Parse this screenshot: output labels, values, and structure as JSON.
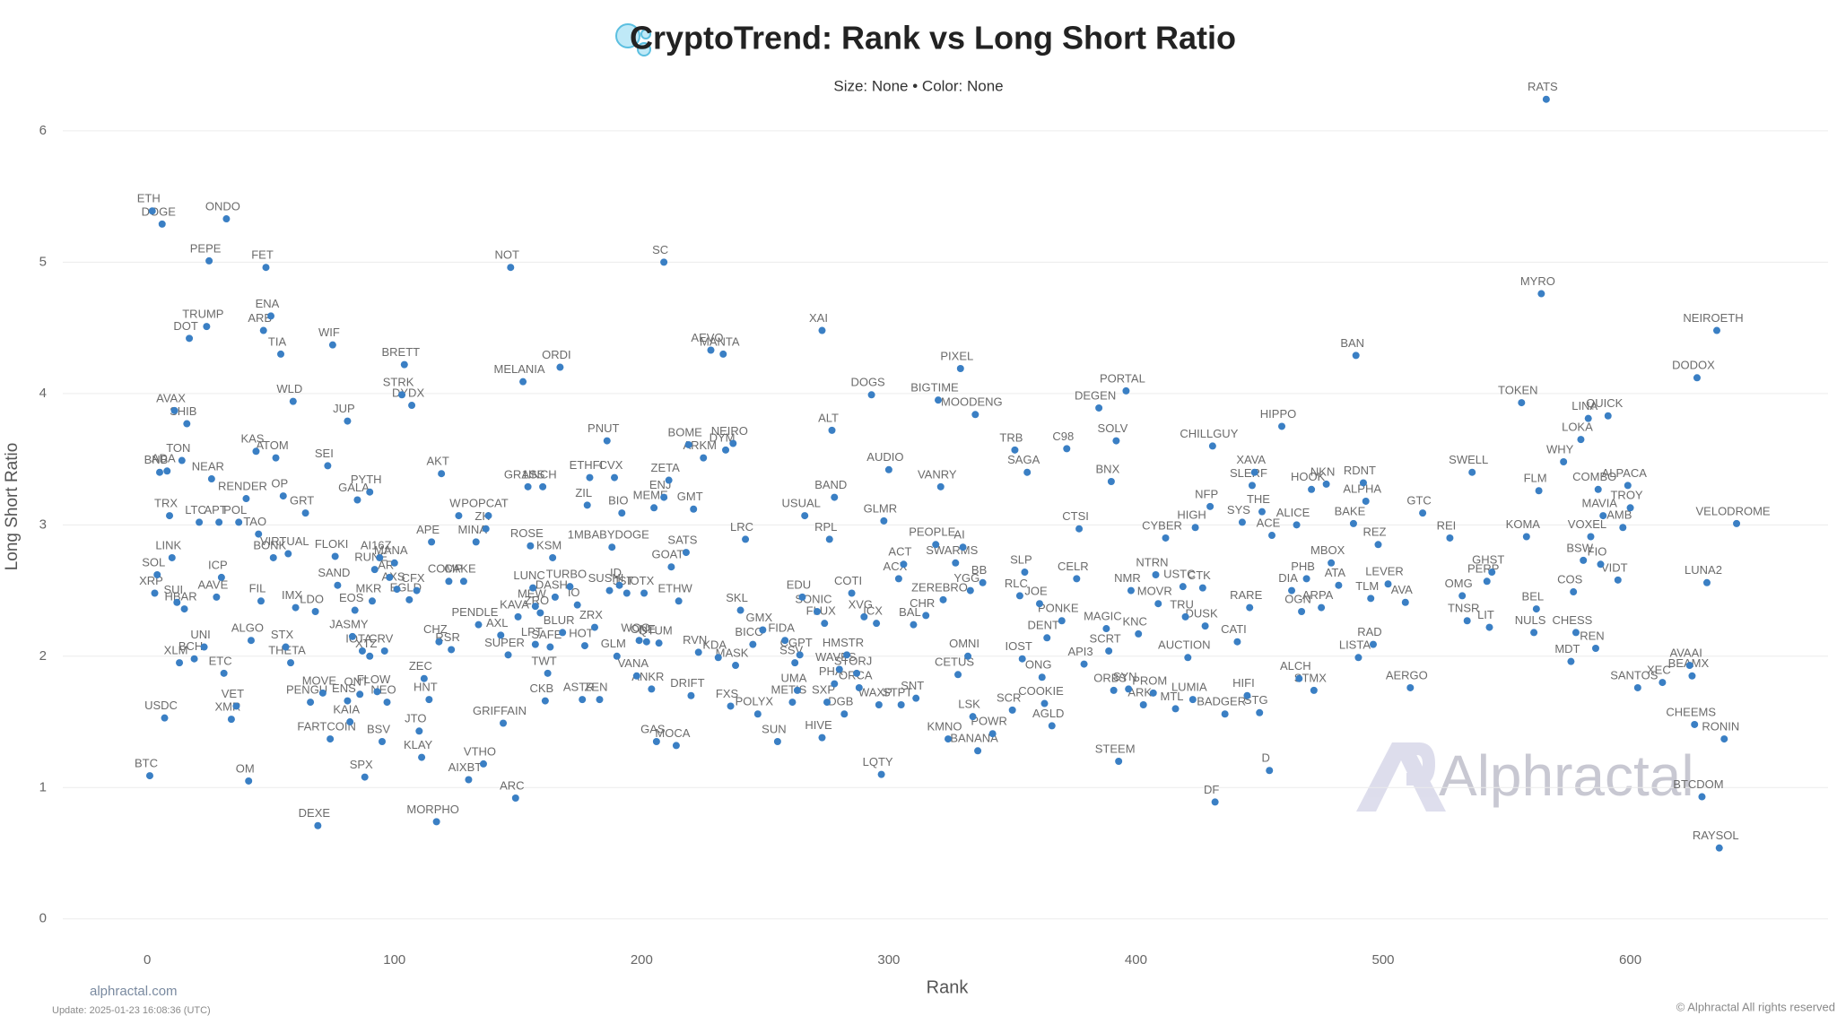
{
  "chart_data": {
    "type": "scatter",
    "title": "CryptoTrend: Rank vs Long Short Ratio",
    "subtitle": "Size: None • Color: None",
    "x_label": "Rank",
    "y_label": "Long Short Ratio",
    "source": "alphractal.com",
    "updated": "Update: 2025-01-23 16:08:36 (UTC)",
    "copyright": "© Alphractal All rights reserved",
    "watermark": "Alphractal",
    "color": "#3a7fc4",
    "grid": true,
    "xlim": [
      -40,
      680
    ],
    "ylim": [
      -0.5,
      6.6
    ],
    "xticks": [
      0,
      100,
      200,
      300,
      400,
      500,
      600
    ],
    "yticks": [
      0,
      1,
      2,
      3,
      4,
      5,
      6
    ],
    "labels": [
      "ETH",
      "BTC",
      "DOGE",
      "ONDO",
      "PEPE",
      "FET",
      "TRUMP",
      "DOT",
      "ENA",
      "ARB",
      "TIA",
      "WIF",
      "BRETT",
      "STRK",
      "DYDX",
      "NOT",
      "MELANIA",
      "ORDI",
      "SC",
      "AEVO",
      "MANTA",
      "XAI",
      "AVAX",
      "SHIB",
      "WLD",
      "JUP",
      "TON",
      "BNB",
      "ADA",
      "KAS",
      "ATOM",
      "SEI",
      "NEAR",
      "RENDER",
      "OP",
      "GALA",
      "PYTH",
      "GRT",
      "TRX",
      "LTC",
      "APT",
      "POL",
      "TAO",
      "AKT",
      "GRASS",
      "1INCH",
      "LINK",
      "BONK",
      "VIRTUAL",
      "FLOKI",
      "SOL",
      "ICP",
      "XRP",
      "AAVE",
      "SUI",
      "HBAR",
      "FIL",
      "IMX",
      "LDO",
      "SAND",
      "ALGO",
      "UNI",
      "STX",
      "BCH",
      "XLM",
      "THETA",
      "ETC",
      "VET",
      "XMR",
      "USDC",
      "OM",
      "DEXE",
      "MOVE",
      "PENGU",
      "ENS",
      "ONT",
      "FLOW",
      "NEO",
      "KAIA",
      "FARTCOIN",
      "BSV",
      "SPX",
      "JASMY",
      "IOTA",
      "XTZ",
      "CRV",
      "EOS",
      "MKR",
      "AI16Z",
      "MANA",
      "RUNE",
      "AR",
      "AXS",
      "CFX",
      "EGLD",
      "ZEC",
      "HNT",
      "JTO",
      "KLAY",
      "MORPHO",
      "VTHO",
      "AIXBT",
      "ARC",
      "GRIFFAIN",
      "CHZ",
      "RSR",
      "COMP",
      "CAKE",
      "APE",
      "PENDLE",
      "AXL",
      "SUPER",
      "W",
      "POPCAT",
      "MINA",
      "ZK",
      "ROSE",
      "KSM",
      "1MBABYDOGE",
      "SATS",
      "GOAT",
      "LRC",
      "LUNC",
      "TURBO",
      "DASH",
      "KAVA",
      "MEW",
      "ZRO",
      "IO",
      "BLUR",
      "ZRX",
      "HOT",
      "SAFE",
      "LPT",
      "TWT",
      "CKB",
      "ASTR",
      "ZEN",
      "ID",
      "SUSHI",
      "JST",
      "IOTX",
      "ETHW",
      "WOO",
      "ONE",
      "QTUM",
      "GLM",
      "VANA",
      "ANKR",
      "RVN",
      "KDA",
      "MASK",
      "DRIFT",
      "GAS",
      "MOCA",
      "PNUT",
      "ETHFI",
      "CVX",
      "ZIL",
      "BIO",
      "MEME",
      "ENJ",
      "ZETA",
      "GMT",
      "BOME",
      "ARKM",
      "NEIRO",
      "DYM",
      "USUAL",
      "BAND",
      "ALT",
      "DOGS",
      "AUDIO",
      "GLMR",
      "RPL",
      "ACT",
      "ACX",
      "EDU",
      "SONIC",
      "FLUX",
      "COTI",
      "XVG",
      "ICX",
      "SKL",
      "GMX",
      "BICO",
      "FIDA",
      "CGPT",
      "SSV",
      "UMA",
      "METIS",
      "FXS",
      "POLYX",
      "SUN",
      "HIVE",
      "HMSTR",
      "WAVES",
      "STORJ",
      "PHA",
      "ORCA",
      "SXP",
      "DGB",
      "WAXP",
      "STPT",
      "SNT",
      "LQTY",
      "BIGTIME",
      "MOODENG",
      "PIXEL",
      "VANRY",
      "PEOPLE",
      "AI",
      "SWARMS",
      "ZEREBRO",
      "CHR",
      "BAL",
      "YGG",
      "BB",
      "OMNI",
      "CETUS",
      "KMNO",
      "LSK",
      "BANANA",
      "POWR",
      "TRB",
      "SAGA",
      "C98",
      "SLP",
      "RLC",
      "JOE",
      "PONKE",
      "DENT",
      "IOST",
      "ONG",
      "COOKIE",
      "SCR",
      "AGLD",
      "CTSI",
      "CELR",
      "MAGIC",
      "SCRT",
      "API3",
      "ORBS",
      "SYN",
      "ARK",
      "PROM",
      "STEEM",
      "PORTAL",
      "DEGEN",
      "SOLV",
      "BNX",
      "CYBER",
      "NTRN",
      "USTC",
      "CTK",
      "NMR",
      "MOVR",
      "TRU",
      "KNC",
      "DUSK",
      "AUCTION",
      "MTL",
      "LUMIA",
      "BADGER",
      "DF",
      "HIGH",
      "NFP",
      "CHILLGUY",
      "SYS",
      "XAVA",
      "SLERF",
      "THE",
      "ACE",
      "RARE",
      "CATI",
      "HIFI",
      "STG",
      "D",
      "HIPPO",
      "ALICE",
      "HOOK",
      "NKN",
      "RDNT",
      "ALPHA",
      "BAKE",
      "MBOX",
      "PHB",
      "ATA",
      "DIA",
      "OGN",
      "ARPA",
      "LEVER",
      "TLM",
      "AVA",
      "ALCH",
      "STMX",
      "RAD",
      "LISTA",
      "AERGO",
      "REZ",
      "BAN",
      "GTC",
      "REI",
      "SWELL",
      "OMG",
      "TNSR",
      "LIT",
      "GHST",
      "PERP",
      "KOMA",
      "BEL",
      "NULS",
      "CHESS",
      "REN",
      "MDT",
      "TOKEN",
      "MYRO",
      "RATS",
      "FLM",
      "WHY",
      "LOKA",
      "LINA",
      "QUICK",
      "COMBO",
      "ALPACA",
      "TROY",
      "MAVIA",
      "AMB",
      "VOXEL",
      "BSW",
      "FIO",
      "COS",
      "VIDT",
      "LUNA2",
      "NEIROETH",
      "DODOX",
      "VELODROME",
      "AVAAI",
      "BEAMX",
      "XEC",
      "SANTOS",
      "CHEEMS",
      "RONIN",
      "BTCDOM",
      "RAYSOL"
    ],
    "x": [
      2,
      1,
      6,
      32,
      25,
      48,
      24,
      17,
      50,
      47,
      54,
      75,
      104,
      103,
      107,
      147,
      152,
      167,
      209,
      228,
      233,
      273,
      11,
      16,
      59,
      81,
      14,
      5,
      8,
      44,
      52,
      73,
      26,
      40,
      55,
      85,
      90,
      64,
      9,
      21,
      29,
      37,
      45,
      119,
      154,
      160,
      10,
      51,
      57,
      76,
      4,
      30,
      3,
      28,
      12,
      15,
      46,
      60,
      68,
      77,
      42,
      23,
      56,
      19,
      13,
      58,
      31,
      36,
      34,
      7,
      41,
      69,
      71,
      66,
      81,
      86,
      93,
      97,
      82,
      74,
      95,
      88,
      83,
      87,
      90,
      96,
      84,
      91,
      94,
      100,
      92,
      98,
      101,
      109,
      106,
      112,
      114,
      110,
      111,
      117,
      136,
      130,
      149,
      144,
      118,
      123,
      122,
      128,
      115,
      134,
      143,
      146,
      126,
      138,
      133,
      137,
      155,
      164,
      188,
      218,
      212,
      242,
      156,
      171,
      165,
      150,
      157,
      159,
      174,
      168,
      181,
      177,
      163,
      157,
      162,
      161,
      176,
      183,
      191,
      187,
      194,
      201,
      215,
      199,
      202,
      207,
      190,
      198,
      204,
      223,
      231,
      238,
      220,
      206,
      214,
      186,
      179,
      189,
      178,
      192,
      205,
      209,
      211,
      221,
      219,
      225,
      237,
      234,
      266,
      278,
      277,
      293,
      300,
      298,
      276,
      306,
      304,
      265,
      271,
      274,
      285,
      290,
      295,
      240,
      249,
      245,
      258,
      264,
      262,
      263,
      261,
      236,
      247,
      255,
      273,
      283,
      280,
      287,
      278,
      288,
      275,
      282,
      296,
      305,
      311,
      297,
      320,
      335,
      329,
      321,
      319,
      330,
      327,
      322,
      315,
      310,
      333,
      338,
      332,
      328,
      324,
      334,
      336,
      342,
      351,
      356,
      372,
      355,
      353,
      361,
      370,
      364,
      354,
      362,
      363,
      350,
      366,
      377,
      376,
      388,
      389,
      379,
      391,
      397,
      403,
      407,
      393,
      396,
      385,
      392,
      390,
      412,
      408,
      419,
      427,
      398,
      409,
      420,
      401,
      428,
      421,
      416,
      423,
      436,
      432,
      424,
      430,
      431,
      443,
      448,
      447,
      451,
      455,
      446,
      441,
      445,
      450,
      454,
      459,
      465,
      471,
      477,
      492,
      493,
      488,
      479,
      469,
      482,
      463,
      467,
      475,
      502,
      495,
      509,
      466,
      472,
      496,
      490,
      511,
      498,
      489,
      516,
      527,
      536,
      532,
      534,
      543,
      544,
      542,
      558,
      562,
      561,
      578,
      586,
      576,
      556,
      564,
      566,
      563,
      573,
      580,
      583,
      591,
      587,
      599,
      600,
      589,
      597,
      584,
      581,
      588,
      577,
      595,
      631,
      635,
      627,
      643,
      624,
      625,
      613,
      603,
      626,
      638,
      629,
      636
    ],
    "values": [
      5.39,
      1.09,
      5.29,
      5.33,
      5.01,
      4.96,
      4.51,
      4.42,
      4.59,
      4.48,
      4.3,
      4.37,
      4.22,
      3.99,
      3.91,
      4.96,
      4.09,
      4.2,
      5.0,
      4.33,
      4.3,
      4.48,
      3.87,
      3.77,
      3.94,
      3.79,
      3.49,
      3.4,
      3.41,
      3.56,
      3.51,
      3.45,
      3.35,
      3.2,
      3.22,
      3.19,
      3.25,
      3.09,
      3.07,
      3.02,
      3.02,
      3.02,
      2.93,
      3.39,
      3.29,
      3.29,
      2.75,
      2.75,
      2.78,
      2.76,
      2.62,
      2.6,
      2.48,
      2.45,
      2.41,
      2.36,
      2.42,
      2.37,
      2.34,
      2.54,
      2.12,
      2.07,
      2.07,
      1.98,
      1.95,
      1.95,
      1.87,
      1.62,
      1.52,
      1.53,
      1.05,
      0.71,
      1.72,
      1.65,
      1.66,
      1.71,
      1.73,
      1.65,
      1.5,
      1.37,
      1.35,
      1.08,
      2.15,
      2.04,
      2.0,
      2.04,
      2.35,
      2.42,
      2.75,
      2.71,
      2.66,
      2.6,
      2.51,
      2.5,
      2.43,
      1.83,
      1.67,
      1.43,
      1.23,
      0.74,
      1.18,
      1.06,
      0.92,
      1.49,
      2.11,
      2.05,
      2.57,
      2.57,
      2.87,
      2.24,
      2.16,
      2.01,
      3.07,
      3.07,
      2.87,
      2.97,
      2.84,
      2.75,
      2.83,
      2.79,
      2.68,
      2.89,
      2.52,
      2.53,
      2.45,
      2.3,
      2.38,
      2.33,
      2.39,
      2.18,
      2.22,
      2.08,
      2.07,
      2.09,
      1.87,
      1.66,
      1.67,
      1.67,
      2.54,
      2.5,
      2.48,
      2.48,
      2.42,
      2.12,
      2.11,
      2.1,
      2.0,
      1.85,
      1.75,
      2.03,
      1.99,
      1.93,
      1.7,
      1.35,
      1.32,
      3.64,
      3.36,
      3.36,
      3.15,
      3.09,
      3.13,
      3.21,
      3.34,
      3.12,
      3.61,
      3.51,
      3.62,
      3.57,
      3.07,
      3.21,
      3.72,
      3.99,
      3.42,
      3.03,
      2.89,
      2.7,
      2.59,
      2.45,
      2.34,
      2.25,
      2.48,
      2.3,
      2.25,
      2.35,
      2.2,
      2.09,
      2.12,
      2.01,
      1.95,
      1.74,
      1.65,
      1.62,
      1.56,
      1.35,
      1.38,
      2.01,
      1.9,
      1.87,
      1.79,
      1.76,
      1.65,
      1.56,
      1.63,
      1.63,
      1.68,
      1.1,
      3.95,
      3.84,
      4.19,
      3.29,
      2.85,
      2.83,
      2.71,
      2.43,
      2.31,
      2.24,
      2.5,
      2.56,
      2.0,
      1.86,
      1.37,
      1.54,
      1.28,
      1.41,
      3.57,
      3.4,
      3.58,
      2.64,
      2.46,
      2.4,
      2.27,
      2.14,
      1.98,
      1.84,
      1.64,
      1.59,
      1.47,
      2.97,
      2.59,
      2.21,
      2.04,
      1.94,
      1.74,
      1.75,
      1.63,
      1.72,
      1.2,
      4.02,
      3.89,
      3.64,
      3.33,
      2.9,
      2.62,
      2.53,
      2.52,
      2.5,
      2.4,
      2.3,
      2.17,
      2.23,
      1.99,
      1.6,
      1.67,
      1.56,
      0.89,
      2.98,
      3.14,
      3.6,
      3.02,
      3.4,
      3.3,
      3.1,
      2.92,
      2.37,
      2.11,
      1.7,
      1.57,
      1.13,
      3.75,
      3.0,
      3.27,
      3.31,
      3.32,
      3.18,
      3.01,
      2.71,
      2.59,
      2.54,
      2.5,
      2.34,
      2.37,
      2.55,
      2.44,
      2.41,
      1.83,
      1.74,
      2.09,
      1.99,
      1.76,
      2.85,
      4.29,
      3.09,
      2.9,
      3.4,
      2.46,
      2.27,
      2.22,
      2.64,
      2.57,
      2.91,
      2.36,
      2.18,
      2.18,
      2.06,
      1.96,
      3.93,
      4.76,
      6.24,
      3.26,
      3.48,
      3.65,
      3.81,
      3.83,
      3.27,
      3.3,
      3.13,
      3.07,
      2.98,
      2.91,
      2.73,
      2.7,
      2.49,
      2.58,
      2.56,
      4.48,
      4.12,
      3.01,
      1.93,
      1.85,
      1.8,
      1.76,
      1.48,
      1.37,
      0.93,
      0.54
    ]
  }
}
